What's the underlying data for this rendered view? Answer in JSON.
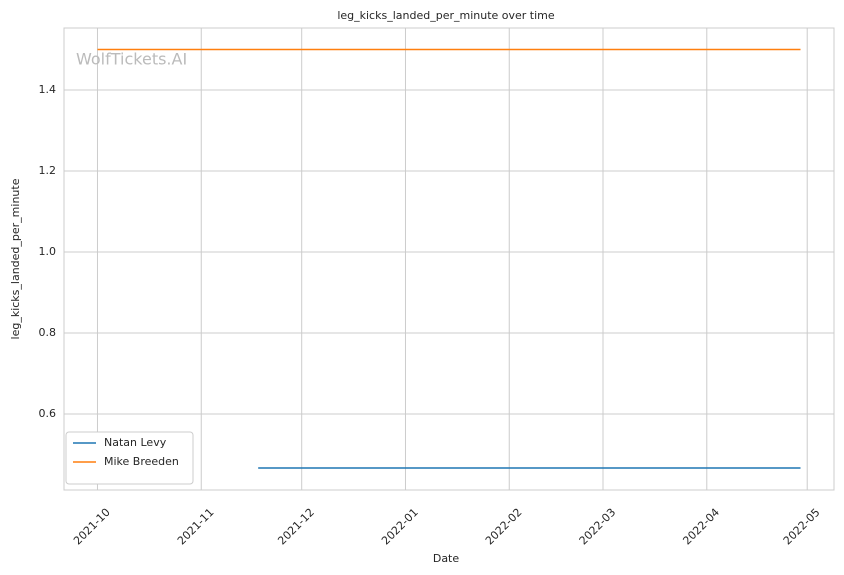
{
  "chart_data": {
    "type": "line",
    "title": "leg_kicks_landed_per_minute over time",
    "x_label": "Date",
    "y_label": "leg_kicks_landed_per_minute",
    "watermark": "WolfTickets.AI",
    "series": [
      {
        "name": "Natan Levy",
        "color": "#1f77b4",
        "x": [
          "2021-11-18",
          "2022-04-29"
        ],
        "values": [
          0.4667,
          0.4667
        ]
      },
      {
        "name": "Mike Breeden",
        "color": "#ff7f0e",
        "x": [
          "2021-10-01",
          "2022-04-29"
        ],
        "values": [
          1.5,
          1.5
        ]
      }
    ],
    "xlim": [
      "2021-09-21",
      "2022-05-09"
    ],
    "xticks": [
      {
        "value": "2021-10-01",
        "label": "2021-10"
      },
      {
        "value": "2021-11-01",
        "label": "2021-11"
      },
      {
        "value": "2021-12-01",
        "label": "2021-12"
      },
      {
        "value": "2022-01-01",
        "label": "2022-01"
      },
      {
        "value": "2022-02-01",
        "label": "2022-02"
      },
      {
        "value": "2022-03-01",
        "label": "2022-03"
      },
      {
        "value": "2022-04-01",
        "label": "2022-04"
      },
      {
        "value": "2022-05-01",
        "label": "2022-05"
      }
    ],
    "ylim": [
      0.4124,
      1.553
    ],
    "yticks": [
      {
        "value": 0.6,
        "label": "0.6"
      },
      {
        "value": 0.8,
        "label": "0.8"
      },
      {
        "value": 1.0,
        "label": "1.0"
      },
      {
        "value": 1.2,
        "label": "1.2"
      },
      {
        "value": 1.4,
        "label": "1.4"
      }
    ],
    "grid": true,
    "legend": "lower left"
  }
}
